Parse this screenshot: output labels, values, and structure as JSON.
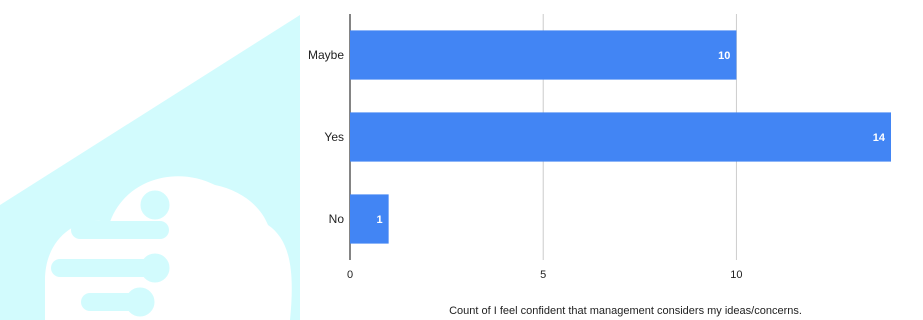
{
  "chart_data": {
    "type": "bar",
    "orientation": "horizontal",
    "categories": [
      "Maybe",
      "Yes",
      "No"
    ],
    "values": [
      10,
      14,
      1
    ],
    "data_labels": [
      "10",
      "14",
      "1"
    ],
    "xlabel": "Count of I feel confident that management considers my ideas/concerns.",
    "ylabel": "",
    "xlim": [
      0,
      14
    ],
    "x_ticks": [
      0,
      5,
      10
    ],
    "x_tick_labels": [
      "0",
      "5",
      "10"
    ],
    "grid": true,
    "legend": "none",
    "colors": {
      "bar": "#4285f4",
      "grid": "#cccccc",
      "axis": "#333333"
    }
  },
  "watermark": {
    "icon": "circuit-cloud-logo-icon",
    "color": "#d2fbfd"
  }
}
